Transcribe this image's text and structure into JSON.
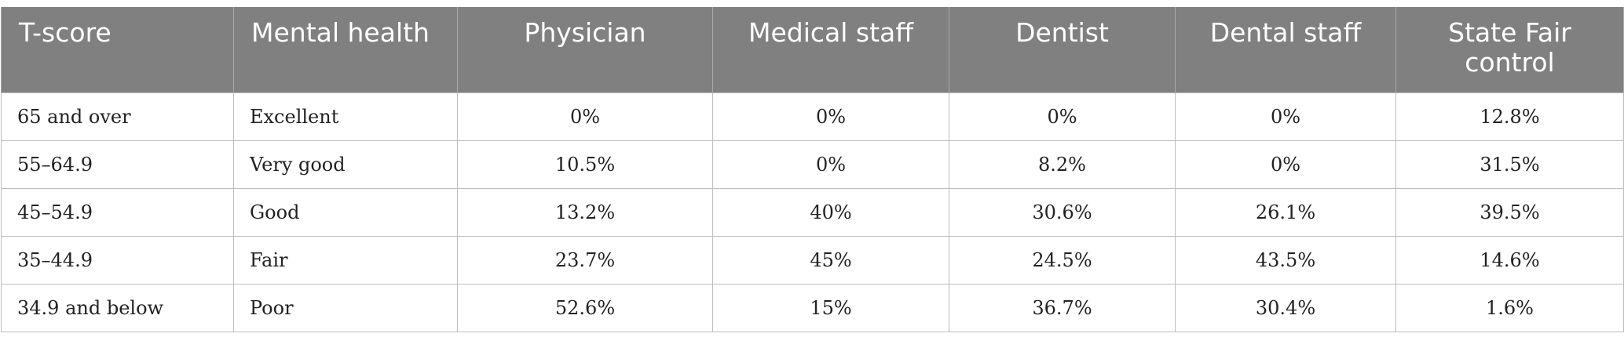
{
  "table": {
    "headers": [
      "T-score",
      "Mental health",
      "Physician",
      "Medical staff",
      "Dentist",
      "Dental staff",
      "State Fair control"
    ],
    "rows": [
      [
        "65 and over",
        "Excellent",
        "0%",
        "0%",
        "0%",
        "0%",
        "12.8%"
      ],
      [
        "55–64.9",
        "Very good",
        "10.5%",
        "0%",
        "8.2%",
        "0%",
        "31.5%"
      ],
      [
        "45–54.9",
        "Good",
        "13.2%",
        "40%",
        "30.6%",
        "26.1%",
        "39.5%"
      ],
      [
        "35–44.9",
        "Fair",
        "23.7%",
        "45%",
        "24.5%",
        "43.5%",
        "14.6%"
      ],
      [
        "34.9 and below",
        "Poor",
        "52.6%",
        "15%",
        "36.7%",
        "30.4%",
        "1.6%"
      ]
    ]
  }
}
